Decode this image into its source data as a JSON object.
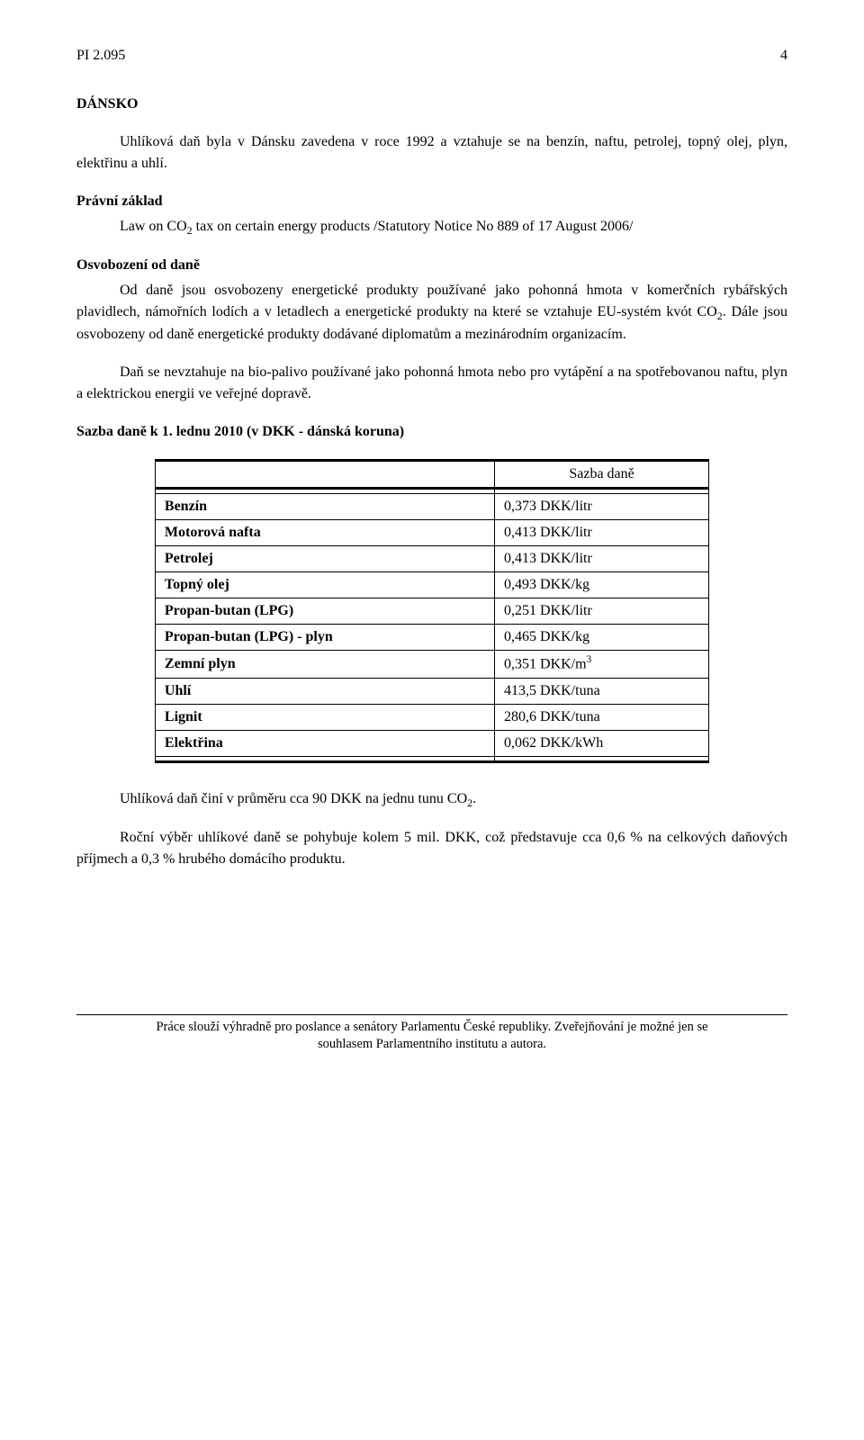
{
  "header": {
    "doc_code": "PI 2.095",
    "page_num": "4"
  },
  "country": "DÁNSKO",
  "intro": "Uhlíková daň byla v Dánsku zavedena v roce 1992 a vztahuje se na benzín, naftu, petrolej, topný olej, plyn, elektřinu a uhlí.",
  "legal": {
    "heading": "Právní základ",
    "text_lead": "Law on CO",
    "text_sub": "2",
    "text_tail": " tax on certain energy products /Statutory Notice No 889 of 17 August 2006/"
  },
  "exemption": {
    "heading": "Osvobození od daně",
    "p1_a": "Od daně jsou osvobozeny energetické produkty používané jako pohonná hmota v komerčních rybářských plavidlech, námořních lodích a v letadlech a energetické produkty na které se vztahuje EU-systém kvót CO",
    "p1_sub": "2",
    "p1_b": ". Dále jsou osvobozeny od daně energetické produkty dodávané diplomatům a mezinárodním organizacím.",
    "p2": "Daň se nevztahuje na bio-palivo používané jako pohonná hmota nebo pro vytápění a na spotřebovanou naftu, plyn a elektrickou energii ve veřejné dopravě."
  },
  "rate_heading": "Sazba daně k 1. lednu 2010 (v DKK - dánská koruna)",
  "table": {
    "headers": [
      "",
      "Sazba daně"
    ],
    "rows": [
      {
        "label": "Benzín",
        "value": "0,373 DKK/litr"
      },
      {
        "label": "Motorová nafta",
        "value": "0,413 DKK/litr"
      },
      {
        "label": "Petrolej",
        "value": "0,413 DKK/litr"
      },
      {
        "label": "Topný olej",
        "value": "0,493 DKK/kg"
      },
      {
        "label": "Propan-butan (LPG)",
        "value": "0,251 DKK/litr"
      },
      {
        "label": "Propan-butan (LPG) - plyn",
        "value": "0,465 DKK/kg"
      },
      {
        "label": "Zemní plyn",
        "value_html": "0,351 DKK/m<sup>3</sup>"
      },
      {
        "label": "Uhlí",
        "value": "413,5 DKK/tuna"
      },
      {
        "label": "Lignit",
        "value": "280,6 DKK/tuna"
      },
      {
        "label": "Elektřina",
        "value": "0,062 DKK/kWh"
      }
    ]
  },
  "notes": {
    "n1_a": "Uhlíková daň činí v průměru cca 90 DKK na jednu tunu CO",
    "n1_sub": "2",
    "n1_b": ".",
    "n2": "Roční výběr uhlíkové daně se pohybuje kolem 5 mil. DKK, což představuje cca 0,6 % na celkových daňových příjmech a 0,3 % hrubého domácího produktu."
  },
  "footer": {
    "line1": "Práce slouží výhradně pro poslance a senátory Parlamentu České republiky. Zveřejňování je možné jen se",
    "line2": "souhlasem  Parlamentního institutu a autora."
  }
}
